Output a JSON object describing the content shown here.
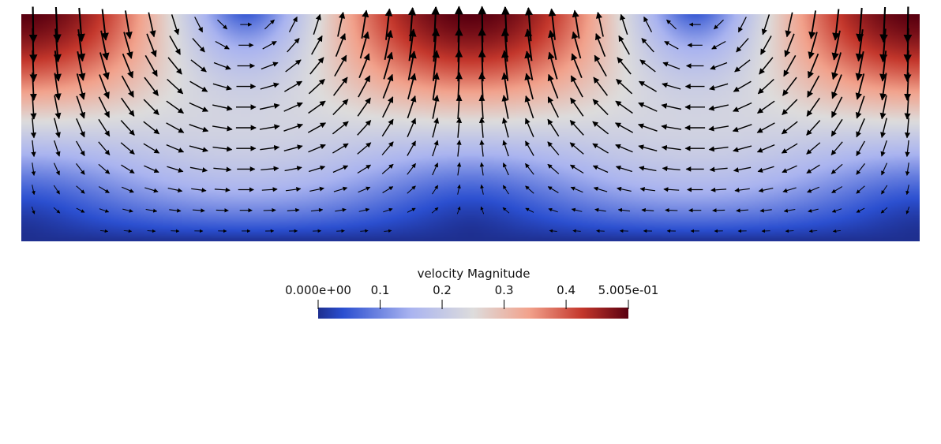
{
  "colorbar": {
    "title": "velocity Magnitude",
    "min": 0.0,
    "max": 0.5005,
    "tick_labels": [
      "0.000e+00",
      "0.1",
      "0.2",
      "0.3",
      "0.4",
      "5.005e-01"
    ],
    "tick_values": [
      0.0,
      0.1,
      0.2,
      0.3,
      0.4,
      0.5005
    ],
    "colormap": [
      "#3b4cc0",
      "#2e53c8",
      "#aab4f0",
      "#dddcdc",
      "#f4a584",
      "#c4372c",
      "#67000d"
    ]
  },
  "field": {
    "description_source": "velocity vectors over a rectangular domain with two counter-rotating cells",
    "vortex_centers": [
      [
        0.25,
        0.95
      ],
      [
        0.75,
        0.95
      ]
    ],
    "max_magnitude": 0.5005
  }
}
